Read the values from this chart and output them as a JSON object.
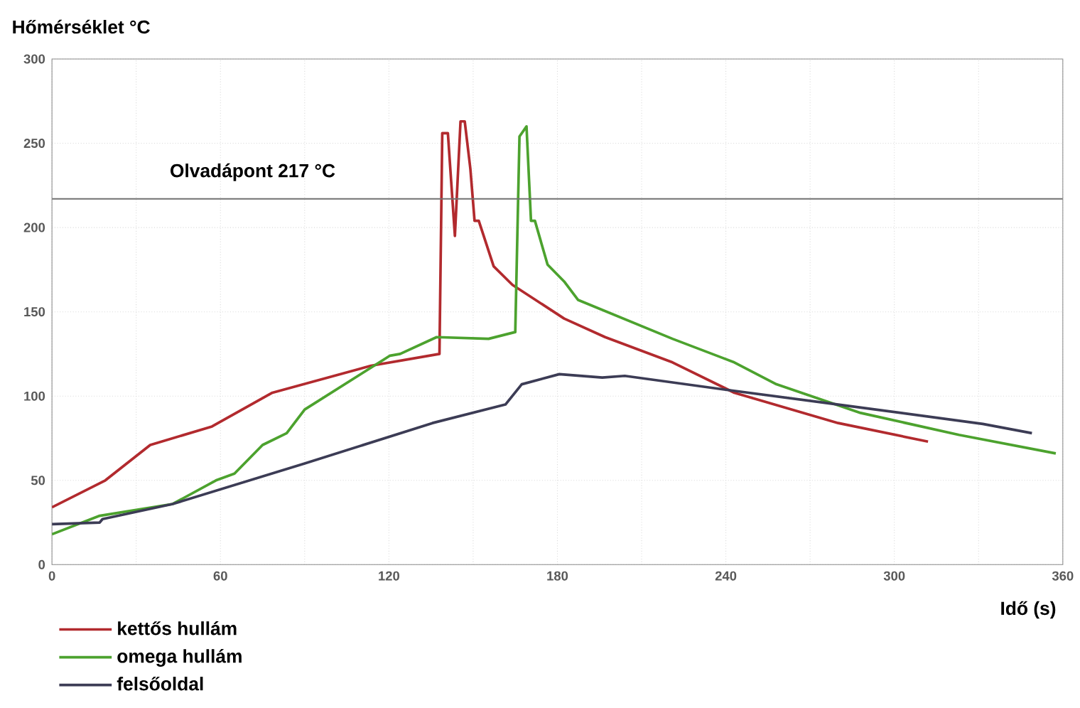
{
  "chart_data": {
    "type": "line",
    "xlabel": "Idő (s)",
    "ylabel": "Hőmérséklet °C",
    "xlim": [
      0,
      360
    ],
    "ylim": [
      0,
      300
    ],
    "xticks": [
      0,
      {
        "value": 30,
        "label": null
      },
      60,
      {
        "value": 90,
        "label": null
      },
      120,
      {
        "value": 150,
        "label": null
      },
      180,
      {
        "value": 210,
        "label": null
      },
      240,
      {
        "value": 270,
        "label": null
      },
      300,
      {
        "value": 330,
        "label": null
      },
      360
    ],
    "yticks": [
      0,
      50,
      100,
      150,
      200,
      250,
      300
    ],
    "grid": true,
    "legend": "bottom left",
    "line_style": "solid",
    "marker": "none",
    "ref_lines": [
      {
        "axis": "y",
        "value": 217,
        "label": "Olvadápont 217 °C",
        "color": "#707070"
      }
    ],
    "series": [
      {
        "name": "kettős hullám",
        "color": "#b22a2e",
        "x": [
          0,
          19,
          35,
          57,
          78.5,
          113.6,
          138,
          139,
          141,
          143.5,
          145.5,
          147,
          149,
          150.5,
          152,
          157.3,
          164,
          182.4,
          197,
          221,
          243,
          280,
          312
        ],
        "values": [
          34,
          50,
          71,
          82,
          102,
          118,
          125,
          256,
          256,
          195,
          263,
          263,
          235,
          204,
          204,
          177,
          166,
          146,
          135,
          120,
          102,
          84,
          73
        ]
      },
      {
        "name": "omega hullám",
        "color": "#4ca22e",
        "x": [
          0,
          17,
          43,
          58.4,
          65,
          75,
          83.6,
          90,
          120.4,
          124,
          137,
          155.5,
          165,
          166.5,
          169,
          170.6,
          172,
          176.5,
          182.4,
          187.4,
          221,
          243,
          258,
          288,
          323,
          357.5
        ],
        "values": [
          18,
          29,
          36,
          50,
          54,
          71,
          78,
          92,
          124,
          125,
          135,
          134,
          138,
          254,
          260,
          204,
          204,
          178,
          168,
          157,
          134,
          120,
          107,
          90,
          77,
          66
        ]
      },
      {
        "name": "felsőoldal",
        "color": "#3c3c55",
        "x": [
          0,
          17,
          18,
          43,
          90,
          135.5,
          161.5,
          167.3,
          180.7,
          196,
          204,
          239,
          280,
          331.5,
          349
        ],
        "values": [
          24,
          25,
          27,
          36,
          60,
          84,
          95,
          107,
          113,
          111,
          112,
          104,
          95,
          83.5,
          78
        ]
      }
    ]
  }
}
